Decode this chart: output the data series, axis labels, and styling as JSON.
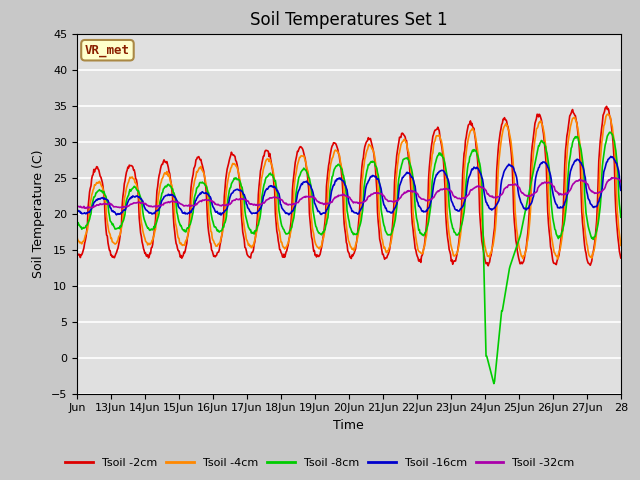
{
  "title": "Soil Temperatures Set 1",
  "xlabel": "Time",
  "ylabel": "Soil Temperature (C)",
  "ylim": [
    -5,
    45
  ],
  "xlim": [
    0,
    16
  ],
  "fig_bg": "#c8c8c8",
  "plot_bg": "#e0e0e0",
  "colors": {
    "2cm": "#dd0000",
    "4cm": "#ff8800",
    "8cm": "#00cc00",
    "16cm": "#0000cc",
    "32cm": "#aa00aa"
  },
  "labels": {
    "2cm": "Tsoil -2cm",
    "4cm": "Tsoil -4cm",
    "8cm": "Tsoil -8cm",
    "16cm": "Tsoil -16cm",
    "32cm": "Tsoil -32cm"
  },
  "annotation_text": "VR_met",
  "annotation_color": "#8b2000",
  "annotation_bg": "#ffffcc",
  "annotation_edge": "#aa8844",
  "tick_labels": [
    "Jun",
    "13Jun",
    "14Jun",
    "15Jun",
    "16Jun",
    "17Jun",
    "18Jun",
    "19Jun",
    "20Jun",
    "21Jun",
    "22Jun",
    "23Jun",
    "24Jun",
    "25Jun",
    "26Jun",
    "27Jun",
    "28"
  ],
  "yticks": [
    -5,
    0,
    5,
    10,
    15,
    20,
    25,
    30,
    35,
    40,
    45
  ],
  "grid_color": "#ffffff",
  "title_fontsize": 12,
  "tick_fontsize": 8,
  "label_fontsize": 9
}
